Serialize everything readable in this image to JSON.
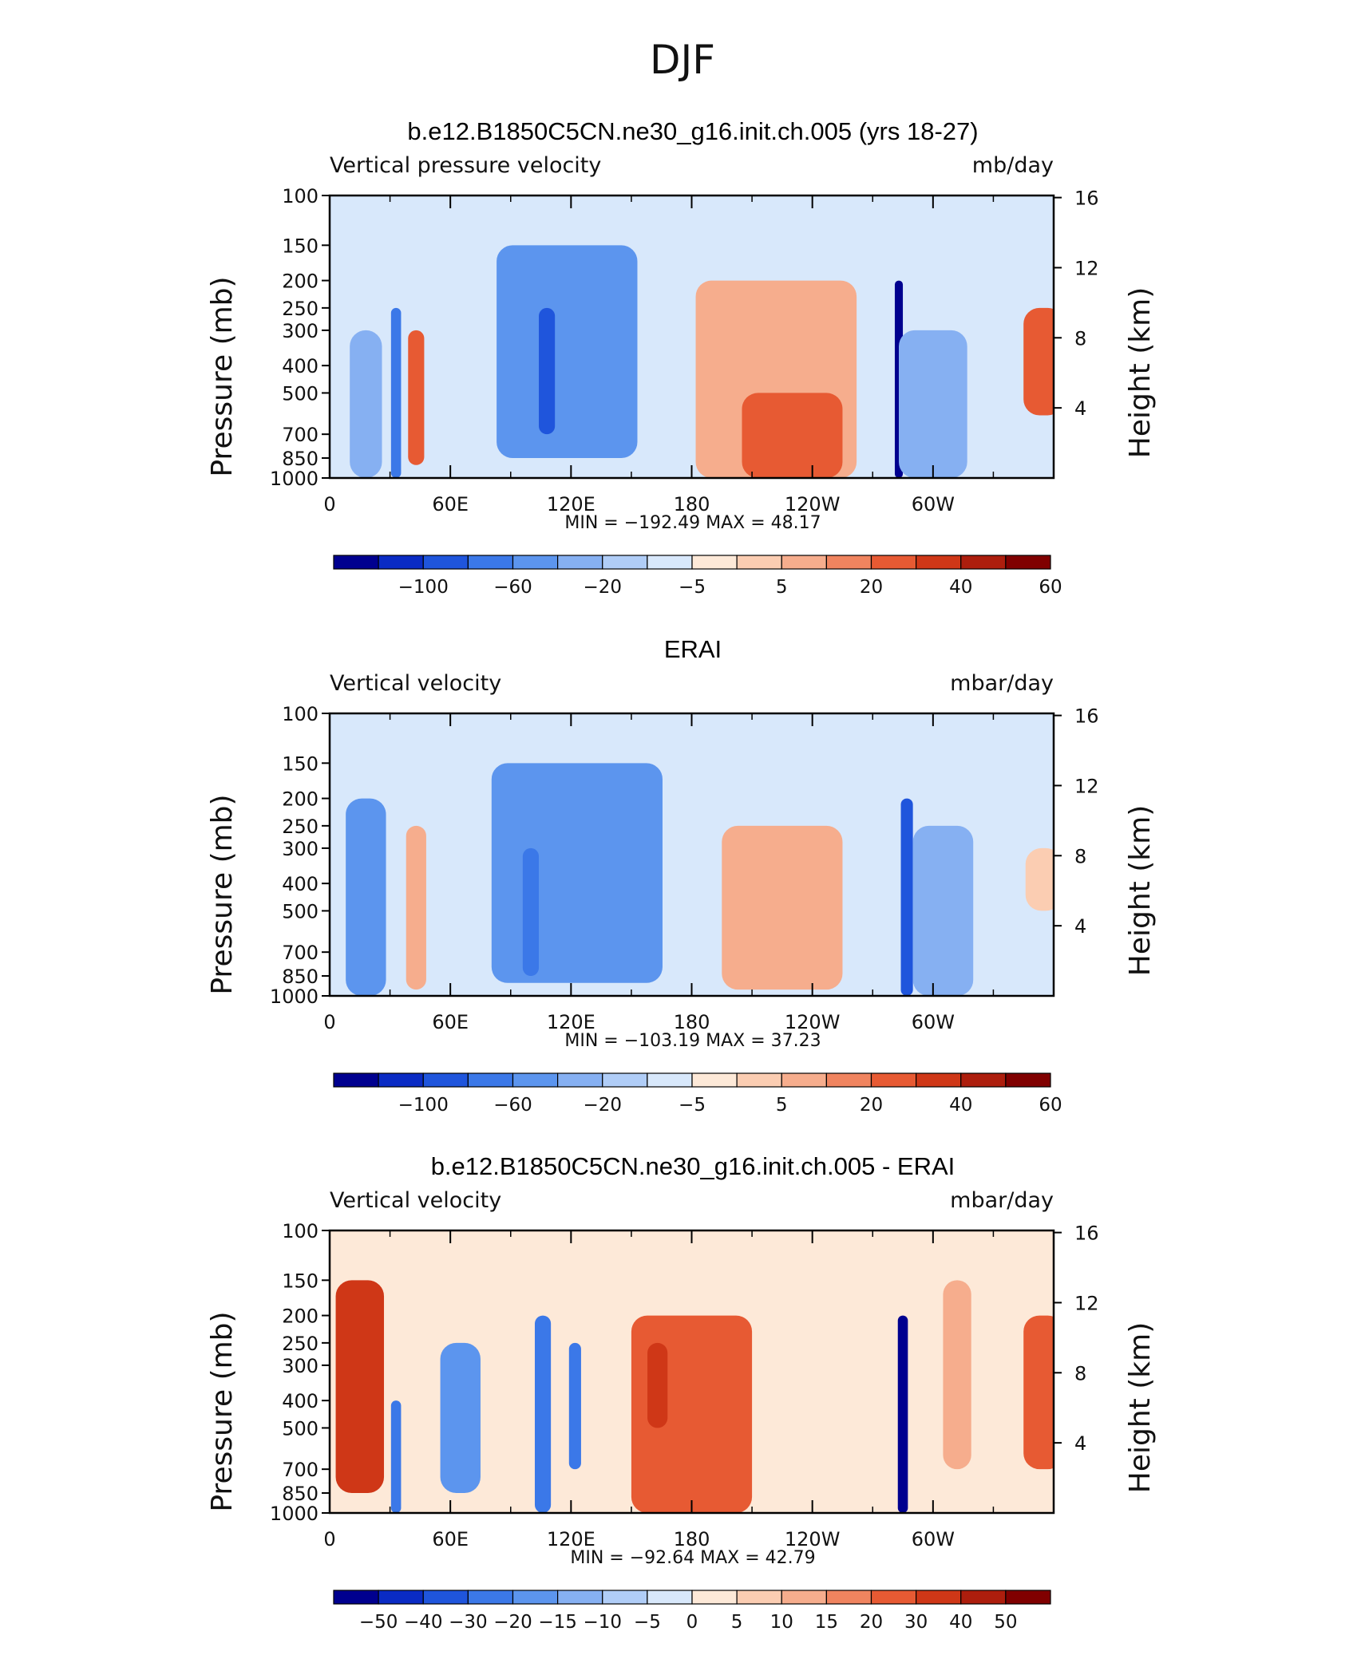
{
  "figure": {
    "season": "DJF",
    "colors": {
      "scale": [
        "#00008f",
        "#0a2bc4",
        "#1f55dc",
        "#3b78e8",
        "#5c95ee",
        "#86b0f2",
        "#b0cdf7",
        "#d8e8fb",
        "#fde9d8",
        "#fbcdb2",
        "#f6ad8d",
        "#f0845f",
        "#e75a33",
        "#cf3717",
        "#ad1e0d",
        "#800000"
      ]
    }
  },
  "chart_data": [
    {
      "type": "heatmap",
      "title": "b.e12.B1850C5CN.ne30_g16.init.ch.005 (yrs 18-27)",
      "left_string": "Vertical pressure velocity",
      "right_string": "mb/day",
      "ylabel": "Pressure (mb)",
      "y2label": "Height (km)",
      "pressure_levels": [
        1000,
        850,
        700,
        500,
        400,
        300,
        250,
        200,
        150,
        100
      ],
      "ytick_labels": [
        "100",
        "150",
        "200",
        "250",
        "300",
        "400",
        "500",
        "700",
        "850",
        "1000"
      ],
      "height_ticks_km": [
        4,
        8,
        12,
        16
      ],
      "xlim": [
        0,
        360
      ],
      "xticks_deg": [
        0,
        60,
        120,
        180,
        240,
        300
      ],
      "xtick_labels": [
        "0",
        "60E",
        "120E",
        "180",
        "120W",
        "60W"
      ],
      "min_max": "MIN = −192.49   MAX =   48.17",
      "colorbar_labels": [
        "−100",
        "−60",
        "−20",
        "−5",
        "5",
        "20",
        "40",
        "60"
      ],
      "features": [
        {
          "lon_center": 18,
          "lon_width": 16,
          "p_top": 300,
          "p_bottom": 1000,
          "value": -40
        },
        {
          "lon_center": 33,
          "lon_width": 5,
          "p_top": 250,
          "p_bottom": 1000,
          "value": -80
        },
        {
          "lon_center": 43,
          "lon_width": 8,
          "p_top": 300,
          "p_bottom": 900,
          "value": 30
        },
        {
          "lon_center": 118,
          "lon_width": 70,
          "p_top": 150,
          "p_bottom": 850,
          "value": -50
        },
        {
          "lon_center": 108,
          "lon_width": 8,
          "p_top": 250,
          "p_bottom": 700,
          "value": -90
        },
        {
          "lon_center": 222,
          "lon_width": 80,
          "p_top": 200,
          "p_bottom": 1000,
          "value": 18
        },
        {
          "lon_center": 230,
          "lon_width": 50,
          "p_top": 500,
          "p_bottom": 1000,
          "value": 35
        },
        {
          "lon_center": 283,
          "lon_width": 4,
          "p_top": 200,
          "p_bottom": 1000,
          "value": -150
        },
        {
          "lon_center": 300,
          "lon_width": 34,
          "p_top": 300,
          "p_bottom": 1000,
          "value": -40
        },
        {
          "lon_center": 355,
          "lon_width": 20,
          "p_top": 250,
          "p_bottom": 600,
          "value": 30
        }
      ]
    },
    {
      "type": "heatmap",
      "title": "ERAI",
      "left_string": "Vertical velocity",
      "right_string": "mbar/day",
      "ylabel": "Pressure (mb)",
      "y2label": "Height (km)",
      "pressure_levels": [
        1000,
        850,
        700,
        500,
        400,
        300,
        250,
        200,
        150,
        100
      ],
      "ytick_labels": [
        "100",
        "150",
        "200",
        "250",
        "300",
        "400",
        "500",
        "700",
        "850",
        "1000"
      ],
      "height_ticks_km": [
        4,
        8,
        12,
        16
      ],
      "xlim": [
        0,
        360
      ],
      "xticks_deg": [
        0,
        60,
        120,
        180,
        240,
        300
      ],
      "xtick_labels": [
        "0",
        "60E",
        "120E",
        "180",
        "120W",
        "60W"
      ],
      "min_max": "MIN = −103.19   MAX =   37.23",
      "colorbar_labels": [
        "−100",
        "−60",
        "−20",
        "−5",
        "5",
        "20",
        "40",
        "60"
      ],
      "features": [
        {
          "lon_center": 18,
          "lon_width": 20,
          "p_top": 200,
          "p_bottom": 1000,
          "value": -45
        },
        {
          "lon_center": 43,
          "lon_width": 10,
          "p_top": 250,
          "p_bottom": 950,
          "value": 18
        },
        {
          "lon_center": 123,
          "lon_width": 85,
          "p_top": 150,
          "p_bottom": 900,
          "value": -50
        },
        {
          "lon_center": 100,
          "lon_width": 8,
          "p_top": 300,
          "p_bottom": 850,
          "value": -80
        },
        {
          "lon_center": 225,
          "lon_width": 60,
          "p_top": 250,
          "p_bottom": 950,
          "value": 14
        },
        {
          "lon_center": 287,
          "lon_width": 6,
          "p_top": 200,
          "p_bottom": 1000,
          "value": -90
        },
        {
          "lon_center": 305,
          "lon_width": 30,
          "p_top": 250,
          "p_bottom": 1000,
          "value": -40
        },
        {
          "lon_center": 355,
          "lon_width": 18,
          "p_top": 300,
          "p_bottom": 500,
          "value": 8
        }
      ]
    },
    {
      "type": "heatmap",
      "title": "b.e12.B1850C5CN.ne30_g16.init.ch.005 - ERAI",
      "left_string": "Vertical velocity",
      "right_string": "mbar/day",
      "ylabel": "Pressure (mb)",
      "y2label": "Height (km)",
      "pressure_levels": [
        1000,
        850,
        700,
        500,
        400,
        300,
        250,
        200,
        150,
        100
      ],
      "ytick_labels": [
        "100",
        "150",
        "200",
        "250",
        "300",
        "400",
        "500",
        "700",
        "850",
        "1000"
      ],
      "height_ticks_km": [
        4,
        8,
        12,
        16
      ],
      "xlim": [
        0,
        360
      ],
      "xticks_deg": [
        0,
        60,
        120,
        180,
        240,
        300
      ],
      "xtick_labels": [
        "0",
        "60E",
        "120E",
        "180",
        "120W",
        "60W"
      ],
      "min_max": "MIN = −92.64   MAX =   42.79",
      "colorbar_labels": [
        "−50",
        "−40",
        "−30",
        "−20",
        "−15",
        "−10",
        "−5",
        "0",
        "5",
        "10",
        "15",
        "20",
        "30",
        "40",
        "50"
      ],
      "features": [
        {
          "lon_center": 15,
          "lon_width": 24,
          "p_top": 150,
          "p_bottom": 850,
          "value": 30
        },
        {
          "lon_center": 33,
          "lon_width": 5,
          "p_top": 400,
          "p_bottom": 1000,
          "value": -30
        },
        {
          "lon_center": 65,
          "lon_width": 20,
          "p_top": 250,
          "p_bottom": 850,
          "value": -20
        },
        {
          "lon_center": 106,
          "lon_width": 8,
          "p_top": 200,
          "p_bottom": 1000,
          "value": -30
        },
        {
          "lon_center": 122,
          "lon_width": 6,
          "p_top": 250,
          "p_bottom": 700,
          "value": -25
        },
        {
          "lon_center": 180,
          "lon_width": 60,
          "p_top": 200,
          "p_bottom": 1000,
          "value": 22
        },
        {
          "lon_center": 163,
          "lon_width": 10,
          "p_top": 250,
          "p_bottom": 500,
          "value": 35
        },
        {
          "lon_center": 285,
          "lon_width": 5,
          "p_top": 200,
          "p_bottom": 1000,
          "value": -60
        },
        {
          "lon_center": 312,
          "lon_width": 14,
          "p_top": 150,
          "p_bottom": 700,
          "value": 12
        },
        {
          "lon_center": 355,
          "lon_width": 20,
          "p_top": 200,
          "p_bottom": 700,
          "value": 25
        }
      ]
    }
  ]
}
